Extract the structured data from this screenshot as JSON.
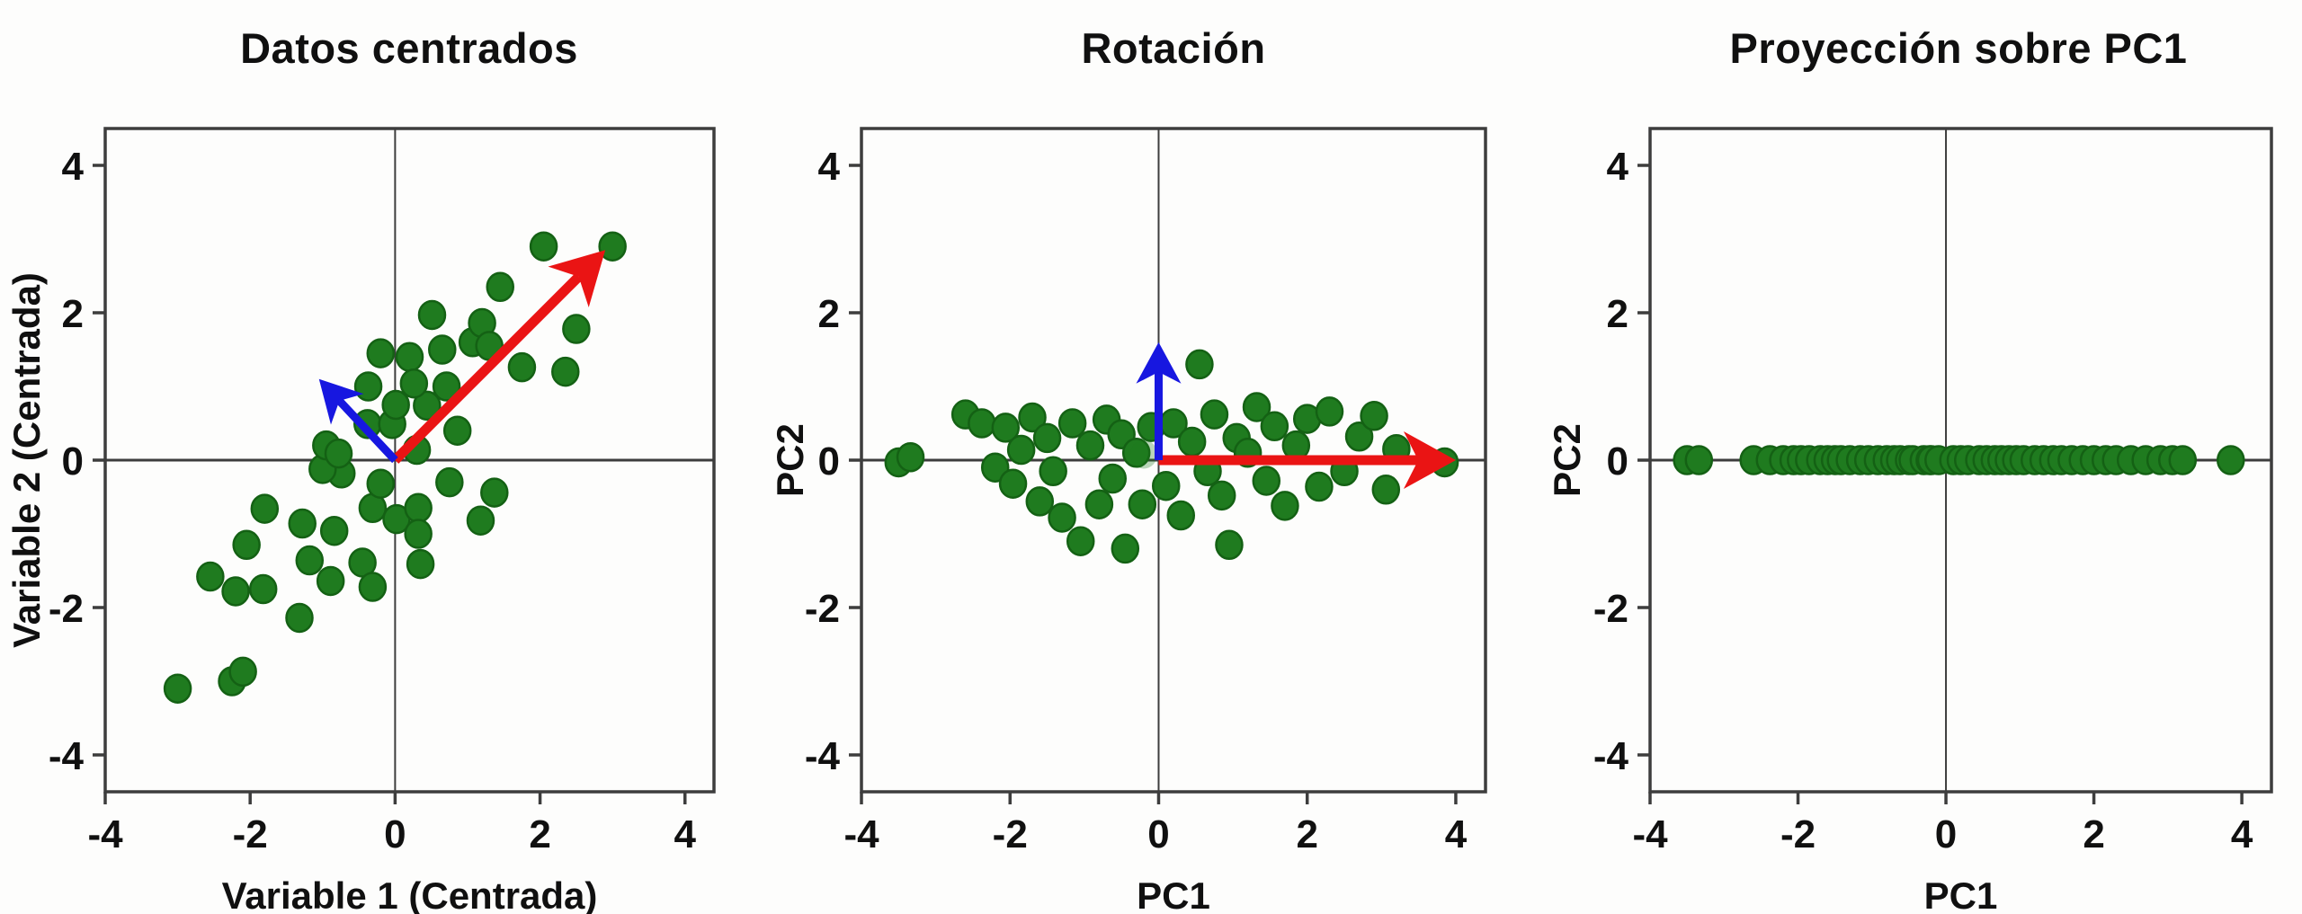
{
  "figure": {
    "background": "#fdfdfc",
    "description_colors": {
      "point_fill": "#1f7b1f",
      "point_edge": "#146114",
      "faded_point_fill": "#1f7b1f",
      "pc1_arrow_color": "#ea1414",
      "pc2_arrow_color": "#1717e0",
      "axis_color": "#3d3d3d",
      "text_color": "#101010"
    }
  },
  "chart_data": [
    {
      "type": "scatter",
      "title": "Datos centrados",
      "xlabel": "Variable 1 (Centrada)",
      "ylabel": "Variable 2 (Centrada)",
      "xlim": [
        -4,
        4.4
      ],
      "ylim": [
        -4.5,
        4.5
      ],
      "xticks": [
        -4,
        -2,
        0,
        2,
        4
      ],
      "yticks": [
        -4,
        -2,
        0,
        2,
        4
      ],
      "grid": false,
      "legend": "none",
      "zero_lines": true,
      "points": [
        [
          -3.0,
          -3.1
        ],
        [
          -2.25,
          -3.0
        ],
        [
          -2.1,
          -2.87
        ],
        [
          -2.55,
          -1.58
        ],
        [
          -2.2,
          -1.78
        ],
        [
          -1.82,
          -1.75
        ],
        [
          -2.05,
          -1.15
        ],
        [
          -1.8,
          -0.66
        ],
        [
          -1.32,
          -2.14
        ],
        [
          -1.18,
          -1.36
        ],
        [
          -0.89,
          -1.64
        ],
        [
          -0.45,
          -1.39
        ],
        [
          -0.31,
          -1.72
        ],
        [
          -1.28,
          -0.86
        ],
        [
          -0.84,
          -0.96
        ],
        [
          -0.31,
          -0.65
        ],
        [
          0.02,
          -0.8
        ],
        [
          0.32,
          -0.65
        ],
        [
          0.32,
          -1.0
        ],
        [
          0.35,
          -1.41
        ],
        [
          1.18,
          -0.82
        ],
        [
          1.37,
          -0.44
        ],
        [
          0.75,
          -0.3
        ],
        [
          -0.2,
          -0.32
        ],
        [
          -0.74,
          -0.18
        ],
        [
          -1.0,
          -0.12
        ],
        [
          -0.95,
          0.2
        ],
        [
          -0.78,
          0.09
        ],
        [
          -0.38,
          0.49
        ],
        [
          -0.04,
          0.49
        ],
        [
          0.3,
          0.14
        ],
        [
          0.44,
          0.74
        ],
        [
          0.01,
          0.75
        ],
        [
          -0.37,
          1.0
        ],
        [
          -0.2,
          1.45
        ],
        [
          0.2,
          1.4
        ],
        [
          0.26,
          1.04
        ],
        [
          0.65,
          1.5
        ],
        [
          0.71,
          1.0
        ],
        [
          1.07,
          1.6
        ],
        [
          0.86,
          0.4
        ],
        [
          1.2,
          1.86
        ],
        [
          1.3,
          1.55
        ],
        [
          1.75,
          1.26
        ],
        [
          2.35,
          1.2
        ],
        [
          2.5,
          1.78
        ],
        [
          1.45,
          2.35
        ],
        [
          0.51,
          1.97
        ],
        [
          2.05,
          2.9
        ],
        [
          3.0,
          2.9
        ]
      ],
      "faded_point": null,
      "arrows": [
        {
          "name": "pc1-arrow",
          "color": "#ea1414",
          "from": [
            0,
            0
          ],
          "to": [
            2.9,
            2.85
          ],
          "shaft": 11,
          "head_len": 58,
          "head_w": 32
        },
        {
          "name": "pc2-arrow",
          "color": "#1717e0",
          "from": [
            0,
            0
          ],
          "to": [
            -1.05,
            1.1
          ],
          "shaft": 9,
          "head_len": 46,
          "head_w": 25
        }
      ]
    },
    {
      "type": "scatter",
      "title": "Rotación",
      "xlabel": "PC1",
      "ylabel": "PC2",
      "xlim": [
        -4,
        4.4
      ],
      "ylim": [
        -4.5,
        4.5
      ],
      "xticks": [
        -4,
        -2,
        0,
        2,
        4
      ],
      "yticks": [
        -4,
        -2,
        0,
        2,
        4
      ],
      "grid": false,
      "legend": "none",
      "zero_lines": true,
      "points": [
        [
          -3.5,
          -0.03
        ],
        [
          -3.34,
          0.04
        ],
        [
          -2.6,
          0.62
        ],
        [
          -2.38,
          0.5
        ],
        [
          -2.2,
          -0.1
        ],
        [
          -2.06,
          0.44
        ],
        [
          -1.96,
          -0.32
        ],
        [
          -1.85,
          0.14
        ],
        [
          -1.7,
          0.58
        ],
        [
          -1.6,
          -0.56
        ],
        [
          -1.5,
          0.3
        ],
        [
          -1.42,
          -0.15
        ],
        [
          -1.3,
          -0.78
        ],
        [
          -1.16,
          0.5
        ],
        [
          -1.05,
          -1.1
        ],
        [
          -0.92,
          0.2
        ],
        [
          -0.8,
          -0.6
        ],
        [
          -0.7,
          0.55
        ],
        [
          -0.62,
          -0.25
        ],
        [
          -0.5,
          0.35
        ],
        [
          -0.45,
          -1.2
        ],
        [
          -0.3,
          0.1
        ],
        [
          -0.22,
          -0.6
        ],
        [
          -0.1,
          0.45
        ],
        [
          0.1,
          -0.35
        ],
        [
          0.2,
          0.5
        ],
        [
          0.3,
          -0.75
        ],
        [
          0.45,
          0.25
        ],
        [
          0.55,
          1.3
        ],
        [
          0.66,
          -0.15
        ],
        [
          0.75,
          0.62
        ],
        [
          0.85,
          -0.48
        ],
        [
          0.95,
          -1.15
        ],
        [
          1.05,
          0.3
        ],
        [
          1.2,
          0.1
        ],
        [
          1.32,
          0.72
        ],
        [
          1.45,
          -0.28
        ],
        [
          1.56,
          0.46
        ],
        [
          1.7,
          -0.62
        ],
        [
          1.85,
          0.2
        ],
        [
          2.0,
          0.56
        ],
        [
          2.16,
          -0.36
        ],
        [
          2.3,
          0.66
        ],
        [
          2.5,
          -0.15
        ],
        [
          2.7,
          0.32
        ],
        [
          2.9,
          0.6
        ],
        [
          3.06,
          -0.4
        ],
        [
          3.2,
          0.15
        ],
        [
          3.85,
          -0.03
        ]
      ],
      "faded_point": [
        -0.2,
        0.08
      ],
      "arrows": [
        {
          "name": "pc1-arrow",
          "color": "#ea1414",
          "from": [
            0,
            0
          ],
          "to": [
            4.0,
            0
          ],
          "shaft": 11,
          "head_len": 58,
          "head_w": 32
        },
        {
          "name": "pc2-arrow",
          "color": "#1717e0",
          "from": [
            0,
            0
          ],
          "to": [
            0,
            1.6
          ],
          "shaft": 9,
          "head_len": 46,
          "head_w": 25
        }
      ]
    },
    {
      "type": "scatter",
      "title": "Proyección sobre PC1",
      "xlabel": "PC1",
      "ylabel": "PC2",
      "xlim": [
        -4,
        4.4
      ],
      "ylim": [
        -4.5,
        4.5
      ],
      "xticks": [
        -4,
        -2,
        0,
        2,
        4
      ],
      "yticks": [
        -4,
        -2,
        0,
        2,
        4
      ],
      "grid": false,
      "legend": "none",
      "zero_lines": true,
      "points": [
        [
          -3.5,
          0
        ],
        [
          -3.34,
          0
        ],
        [
          -2.6,
          0
        ],
        [
          -2.38,
          0
        ],
        [
          -2.2,
          0
        ],
        [
          -2.06,
          0
        ],
        [
          -1.96,
          0
        ],
        [
          -1.85,
          0
        ],
        [
          -1.7,
          0
        ],
        [
          -1.6,
          0
        ],
        [
          -1.5,
          0
        ],
        [
          -1.42,
          0
        ],
        [
          -1.3,
          0
        ],
        [
          -1.16,
          0
        ],
        [
          -1.05,
          0
        ],
        [
          -0.92,
          0
        ],
        [
          -0.8,
          0
        ],
        [
          -0.7,
          0
        ],
        [
          -0.62,
          0
        ],
        [
          -0.5,
          0
        ],
        [
          -0.45,
          0
        ],
        [
          -0.3,
          0
        ],
        [
          -0.22,
          0
        ],
        [
          -0.2,
          0
        ],
        [
          -0.1,
          0
        ],
        [
          0.1,
          0
        ],
        [
          0.2,
          0
        ],
        [
          0.3,
          0
        ],
        [
          0.45,
          0
        ],
        [
          0.55,
          0
        ],
        [
          0.66,
          0
        ],
        [
          0.75,
          0
        ],
        [
          0.85,
          0
        ],
        [
          0.95,
          0
        ],
        [
          1.05,
          0
        ],
        [
          1.2,
          0
        ],
        [
          1.32,
          0
        ],
        [
          1.45,
          0
        ],
        [
          1.56,
          0
        ],
        [
          1.7,
          0
        ],
        [
          1.85,
          0
        ],
        [
          2.0,
          0
        ],
        [
          2.16,
          0
        ],
        [
          2.3,
          0
        ],
        [
          2.5,
          0
        ],
        [
          2.7,
          0
        ],
        [
          2.9,
          0
        ],
        [
          3.06,
          0
        ],
        [
          3.2,
          0
        ],
        [
          3.85,
          0
        ]
      ],
      "faded_point": null,
      "arrows": []
    }
  ]
}
